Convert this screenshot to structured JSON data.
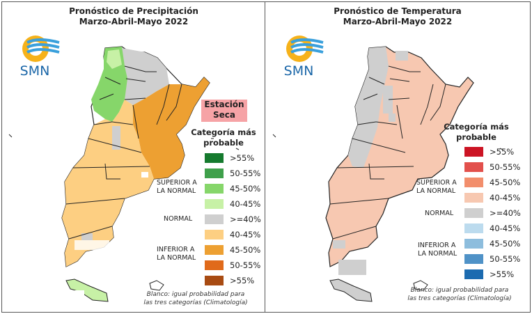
{
  "precipitation": {
    "title_line1": "Pronóstico de Precipitación",
    "title_line2": "Marzo-Abril-Mayo 2022",
    "logo_text": "SMN",
    "dry_season_label_line1": "Estación",
    "dry_season_label_line2": "Seca",
    "category_heading_line1": "Categoría más",
    "category_heading_line2": "probable",
    "legend": [
      {
        "label": ">55%",
        "color": "#157a2e"
      },
      {
        "label": "50-55%",
        "color": "#3fa04b"
      },
      {
        "label": "45-50%",
        "color": "#86d66a"
      },
      {
        "label": "40-45%",
        "color": "#c7f1a6"
      },
      {
        "label": ">=40%",
        "color": "#cfcfcf"
      },
      {
        "label": "40-45%",
        "color": "#fdcf82"
      },
      {
        "label": "45-50%",
        "color": "#eda032"
      },
      {
        "label": "50-55%",
        "color": "#e06a1b"
      },
      {
        "label": ">55%",
        "color": "#a84b12"
      }
    ],
    "group_above_line1": "SUPERIOR A",
    "group_above_line2": "LA NORMAL",
    "group_normal": "NORMAL",
    "group_below_line1": "INFERIOR A",
    "group_below_line2": "LA NORMAL",
    "note_line1": "Blanco: igual probabilidad para",
    "note_line2": "las tres categorías (Climatología)"
  },
  "temperature": {
    "title_line1": "Pronóstico de Temperatura",
    "title_line2": "Marzo-Abril-Mayo 2022",
    "logo_text": "SMN",
    "category_heading_line1": "Categoría más",
    "category_heading_line2": "probable",
    "legend": [
      {
        "label": ">55%",
        "color": "#cc1424"
      },
      {
        "label": "50-55%",
        "color": "#e2504c"
      },
      {
        "label": "45-50%",
        "color": "#f28e6c"
      },
      {
        "label": "40-45%",
        "color": "#f7c8b1"
      },
      {
        "label": ">=40%",
        "color": "#cfcfcf"
      },
      {
        "label": "40-45%",
        "color": "#bcdbee"
      },
      {
        "label": "45-50%",
        "color": "#8dbddd"
      },
      {
        "label": "50-55%",
        "color": "#4f92c7"
      },
      {
        "label": ">55%",
        "color": "#1c6bb0"
      }
    ],
    "group_above_line1": "SUPERIOR A",
    "group_above_line2": "LA NORMAL",
    "group_normal": "NORMAL",
    "group_below_line1": "INFERIOR A",
    "group_below_line2": "LA NORMAL",
    "note_line1": "Blanco: igual probabilidad para",
    "note_line2": "las tres categorías (Climatología)"
  }
}
